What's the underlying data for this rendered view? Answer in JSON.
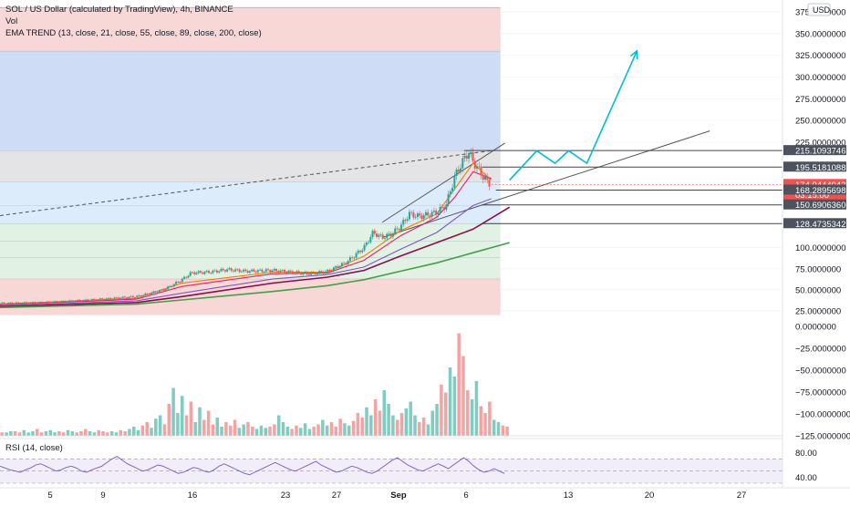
{
  "header": {
    "title": "SOL / US Dollar (calculated by TradingView), 4h, BINANCE",
    "vol_label": "Vol",
    "ema_label": "EMA TREND (13, close, 21, close, 55, close, 89, close, 200, close)",
    "currency_badge": "USD"
  },
  "rsi": {
    "label": "RSI (14, close)",
    "ticks": [
      {
        "label": "80.00",
        "value": 80
      },
      {
        "label": "40.00",
        "value": 40
      }
    ],
    "upper_band": 70,
    "lower_band": 30
  },
  "colors": {
    "up": "#26a69a",
    "down": "#ef5350",
    "projection": "#00bcd4",
    "ema13": "#f57c00",
    "ema21": "#e91e63",
    "ema55": "#7e57c2",
    "ema89": "#880e4f",
    "ema200": "#43a047",
    "rsi": "#7e57c2",
    "trendline": "#555555",
    "zone_red": "#f8d7d7",
    "zone_blue": "#cfdcf5",
    "zone_grey": "#e4e4e6",
    "zone_lightblue": "#ddecfa",
    "zone_green": "#e1f1e3"
  },
  "chart_data": {
    "type": "candlestick",
    "symbol": "SOL / US Dollar",
    "timeframe": "4h",
    "exchange": "BINANCE",
    "x_ticks": [
      "5",
      "9",
      "16",
      "23",
      "27",
      "Sep",
      "6",
      "13",
      "20",
      "27"
    ],
    "y_ticks": [
      {
        "label": "375.0000000",
        "value": 375
      },
      {
        "label": "350.0000000",
        "value": 350
      },
      {
        "label": "325.0000000",
        "value": 325
      },
      {
        "label": "300.0000000",
        "value": 300
      },
      {
        "label": "275.0000000",
        "value": 275
      },
      {
        "label": "250.0000000",
        "value": 250
      },
      {
        "label": "225.0000000",
        "value": 225
      },
      {
        "label": "100.0000000",
        "value": 100
      },
      {
        "label": "75.0000000",
        "value": 75
      },
      {
        "label": "50.0000000",
        "value": 50
      },
      {
        "label": "25.0000000",
        "value": 25
      }
    ],
    "price_labels": [
      {
        "label": "215.1093746",
        "value": 215.11,
        "kind": "level"
      },
      {
        "label": "195.5181088",
        "value": 195.52,
        "kind": "level"
      },
      {
        "label": "174.9444042",
        "value": 174.94,
        "kind": "current",
        "countdown": "03:15:00"
      },
      {
        "label": "168.2895698",
        "value": 168.29,
        "kind": "level"
      },
      {
        "label": "150.6906360",
        "value": 150.69,
        "kind": "level"
      },
      {
        "label": "128.4735342",
        "value": 128.47,
        "kind": "level"
      }
    ],
    "volume_ticks": [
      {
        "label": "0.0000000",
        "value": 0
      },
      {
        "label": "−25.0000000",
        "value": -25
      },
      {
        "label": "−50.0000000",
        "value": -50
      },
      {
        "label": "−75.0000000",
        "value": -75
      },
      {
        "label": "−100.0000000",
        "value": -100
      },
      {
        "label": "−125.0000000",
        "value": -125
      }
    ],
    "price_series": [
      {
        "x": 0,
        "y": 34
      },
      {
        "x": 5,
        "y": 35
      },
      {
        "x": 10,
        "y": 38
      },
      {
        "x": 15,
        "y": 42
      },
      {
        "x": 18,
        "y": 50
      },
      {
        "x": 20,
        "y": 62
      },
      {
        "x": 21,
        "y": 70
      },
      {
        "x": 23,
        "y": 71
      },
      {
        "x": 25,
        "y": 74
      },
      {
        "x": 27,
        "y": 72
      },
      {
        "x": 30,
        "y": 73
      },
      {
        "x": 32,
        "y": 71
      },
      {
        "x": 34,
        "y": 69
      },
      {
        "x": 36,
        "y": 72
      },
      {
        "x": 38,
        "y": 82
      },
      {
        "x": 40,
        "y": 100
      },
      {
        "x": 41,
        "y": 118
      },
      {
        "x": 42,
        "y": 112
      },
      {
        "x": 43,
        "y": 116
      },
      {
        "x": 44,
        "y": 125
      },
      {
        "x": 45,
        "y": 140
      },
      {
        "x": 46,
        "y": 137
      },
      {
        "x": 47,
        "y": 139
      },
      {
        "x": 48,
        "y": 142
      },
      {
        "x": 49,
        "y": 150
      },
      {
        "x": 50,
        "y": 185
      },
      {
        "x": 51,
        "y": 205
      },
      {
        "x": 51.5,
        "y": 214
      },
      {
        "x": 52,
        "y": 202
      },
      {
        "x": 52.5,
        "y": 194
      },
      {
        "x": 53,
        "y": 186
      },
      {
        "x": 53.5,
        "y": 178
      },
      {
        "x": 54,
        "y": 175
      }
    ],
    "ema_series": [
      {
        "name": "13",
        "points": [
          {
            "x": 0,
            "y": 33
          },
          {
            "x": 15,
            "y": 40
          },
          {
            "x": 20,
            "y": 58
          },
          {
            "x": 30,
            "y": 71
          },
          {
            "x": 36,
            "y": 71
          },
          {
            "x": 40,
            "y": 90
          },
          {
            "x": 44,
            "y": 120
          },
          {
            "x": 48,
            "y": 140
          },
          {
            "x": 50,
            "y": 170
          },
          {
            "x": 52,
            "y": 200
          },
          {
            "x": 54,
            "y": 180
          }
        ]
      },
      {
        "name": "21",
        "points": [
          {
            "x": 0,
            "y": 32
          },
          {
            "x": 15,
            "y": 39
          },
          {
            "x": 20,
            "y": 54
          },
          {
            "x": 30,
            "y": 69
          },
          {
            "x": 36,
            "y": 70
          },
          {
            "x": 40,
            "y": 85
          },
          {
            "x": 44,
            "y": 114
          },
          {
            "x": 48,
            "y": 136
          },
          {
            "x": 50,
            "y": 160
          },
          {
            "x": 52,
            "y": 190
          },
          {
            "x": 54,
            "y": 182
          }
        ]
      },
      {
        "name": "55",
        "points": [
          {
            "x": 0,
            "y": 31
          },
          {
            "x": 15,
            "y": 37
          },
          {
            "x": 20,
            "y": 46
          },
          {
            "x": 30,
            "y": 63
          },
          {
            "x": 36,
            "y": 68
          },
          {
            "x": 40,
            "y": 77
          },
          {
            "x": 44,
            "y": 98
          },
          {
            "x": 48,
            "y": 118
          },
          {
            "x": 50,
            "y": 134
          },
          {
            "x": 52,
            "y": 150
          },
          {
            "x": 54,
            "y": 158
          }
        ]
      },
      {
        "name": "89",
        "points": [
          {
            "x": 0,
            "y": 30
          },
          {
            "x": 15,
            "y": 35
          },
          {
            "x": 20,
            "y": 42
          },
          {
            "x": 30,
            "y": 58
          },
          {
            "x": 36,
            "y": 65
          },
          {
            "x": 40,
            "y": 73
          },
          {
            "x": 44,
            "y": 90
          },
          {
            "x": 48,
            "y": 106
          },
          {
            "x": 52,
            "y": 122
          },
          {
            "x": 54,
            "y": 135
          },
          {
            "x": 56,
            "y": 148
          }
        ]
      },
      {
        "name": "200",
        "points": [
          {
            "x": 0,
            "y": 29
          },
          {
            "x": 15,
            "y": 33
          },
          {
            "x": 20,
            "y": 38
          },
          {
            "x": 30,
            "y": 48
          },
          {
            "x": 36,
            "y": 55
          },
          {
            "x": 40,
            "y": 62
          },
          {
            "x": 44,
            "y": 72
          },
          {
            "x": 48,
            "y": 82
          },
          {
            "x": 52,
            "y": 94
          },
          {
            "x": 56,
            "y": 106
          }
        ]
      }
    ],
    "zones": [
      {
        "from": 20,
        "to": 63,
        "color": "zone_red"
      },
      {
        "from": 63,
        "to": 88,
        "color": "zone_green"
      },
      {
        "from": 88,
        "to": 108,
        "color": "zone_green"
      },
      {
        "from": 108,
        "to": 128,
        "color": "zone_green"
      },
      {
        "from": 128,
        "to": 150,
        "color": "zone_lightblue"
      },
      {
        "from": 150,
        "to": 178,
        "color": "zone_lightblue"
      },
      {
        "from": 178,
        "to": 215,
        "color": "zone_grey"
      },
      {
        "from": 215,
        "to": 330,
        "color": "zone_blue"
      },
      {
        "from": 330,
        "to": 380,
        "color": "zone_red"
      }
    ],
    "zone_end_x": 55,
    "channel_lines": [
      {
        "from": {
          "x": 42,
          "y": 130
        },
        "to": {
          "x": 55.5,
          "y": 224
        }
      },
      {
        "from": {
          "x": 42,
          "y": 112
        },
        "to": {
          "x": 78,
          "y": 238
        }
      },
      {
        "from": {
          "x": 0,
          "y": 138
        },
        "to": {
          "x": 54,
          "y": 215
        }
      }
    ],
    "level_lines": [
      {
        "value": 215.11,
        "from_x": 51,
        "to_x": 86
      },
      {
        "value": 195.52,
        "from_x": 53,
        "to_x": 86
      },
      {
        "value": 168.29,
        "from_x": 54.5,
        "to_x": 86
      },
      {
        "value": 150.69,
        "from_x": 53,
        "to_x": 86
      },
      {
        "value": 128.47,
        "from_x": 53,
        "to_x": 86
      }
    ],
    "projection": [
      {
        "x": 56,
        "y": 180
      },
      {
        "x": 59,
        "y": 215
      },
      {
        "x": 61,
        "y": 200
      },
      {
        "x": 62.5,
        "y": 215
      },
      {
        "x": 64.5,
        "y": 200
      },
      {
        "x": 70,
        "y": 330
      }
    ],
    "volume": [
      3,
      3,
      4,
      4,
      3,
      5,
      3,
      4,
      6,
      3,
      4,
      5,
      3,
      4,
      3,
      5,
      4,
      3,
      4,
      6,
      4,
      3,
      5,
      4,
      3,
      4,
      3,
      5,
      4,
      6,
      8,
      5,
      9,
      12,
      7,
      15,
      18,
      10,
      28,
      42,
      20,
      35,
      18,
      30,
      12,
      25,
      14,
      22,
      10,
      16,
      8,
      12,
      9,
      14,
      7,
      10,
      12,
      8,
      6,
      9,
      7,
      8,
      10,
      18,
      12,
      8,
      6,
      9,
      7,
      11,
      6,
      8,
      10,
      14,
      9,
      12,
      8,
      15,
      11,
      9,
      13,
      20,
      16,
      25,
      18,
      32,
      22,
      40,
      28,
      18,
      14,
      20,
      24,
      30,
      18,
      12,
      16,
      10,
      22,
      28,
      45,
      38,
      60,
      52,
      90,
      70,
      40,
      32,
      48,
      26,
      20,
      30,
      14,
      12,
      9,
      8
    ],
    "rsi_values": [
      58,
      55,
      52,
      50,
      48,
      52,
      55,
      60,
      62,
      58,
      54,
      50,
      52,
      56,
      58,
      55,
      50,
      48,
      52,
      55,
      58,
      64,
      70,
      74,
      68,
      62,
      58,
      54,
      50,
      52,
      56,
      60,
      58,
      54,
      50,
      46,
      48,
      52,
      56,
      54,
      50,
      48,
      52,
      58,
      62,
      58,
      54,
      50,
      46,
      44,
      48,
      52,
      56,
      60,
      64,
      60,
      56,
      52,
      50,
      54,
      58,
      62,
      66,
      60,
      56,
      52,
      48,
      50,
      54,
      58,
      56,
      52,
      48,
      46,
      50,
      56,
      62,
      68,
      72,
      66,
      60,
      56,
      52,
      50,
      54,
      58,
      62,
      58,
      54,
      60,
      66,
      72,
      66,
      58,
      52,
      48,
      50,
      54,
      50,
      46
    ]
  }
}
